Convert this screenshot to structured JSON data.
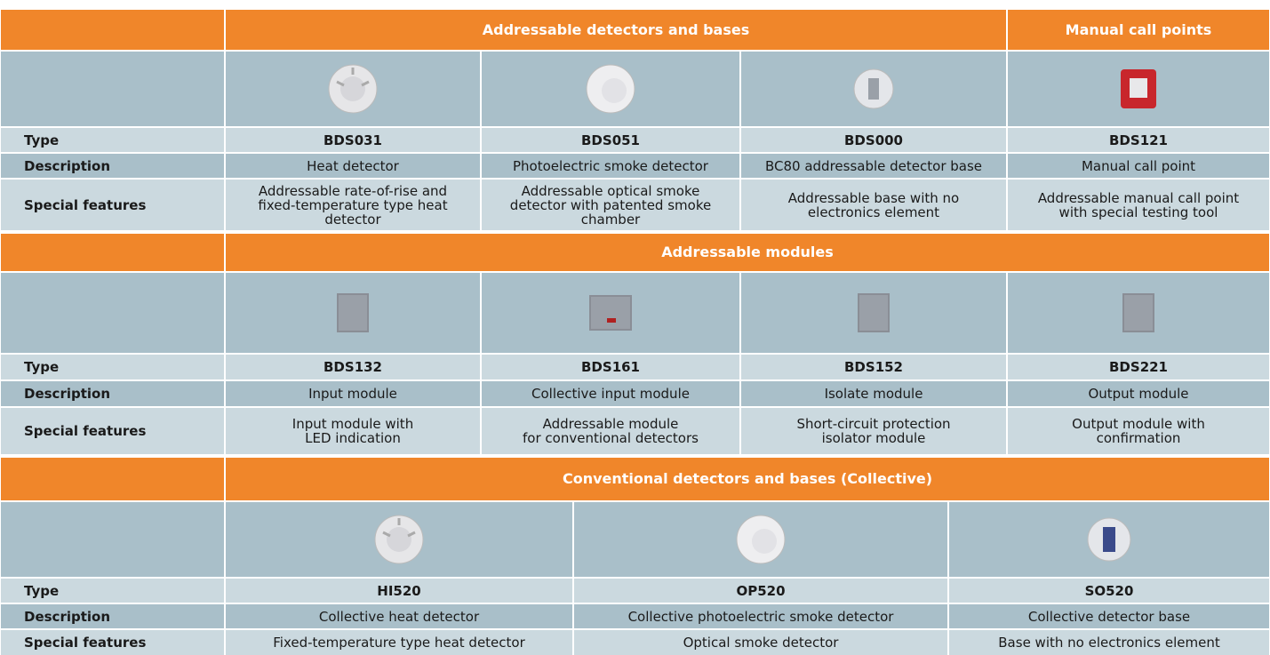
{
  "sections": [
    {
      "headers": [
        "Addressable detectors and bases",
        "Manual call points"
      ],
      "labels": [
        "Type",
        "Description",
        "Special features"
      ],
      "columns": [
        {
          "type": "BDS031",
          "description": "Heat detector",
          "features": "Addressable rate-of-rise and\nfixed-temperature type heat\ndetector"
        },
        {
          "type": "BDS051",
          "description": "Photoelectric smoke detector",
          "features": "Addressable optical smoke\ndetector with patented smoke\nchamber"
        },
        {
          "type": "BDS000",
          "description": "BC80 addressable detector base",
          "features": "Addressable base with no\nelectronics element"
        },
        {
          "type": "BDS121",
          "description": "Manual call point",
          "features": "Addressable manual call point\nwith special testing tool"
        }
      ]
    },
    {
      "headers": [
        "Addressable modules"
      ],
      "labels": [
        "Type",
        "Description",
        "Special features"
      ],
      "columns": [
        {
          "type": "BDS132",
          "description": "Input module",
          "features": "Input module with\nLED indication"
        },
        {
          "type": "BDS161",
          "description": "Collective input module",
          "features": "Addressable module\nfor conventional detectors"
        },
        {
          "type": "BDS152",
          "description": "Isolate module",
          "features": "Short-circuit protection\nisolator module"
        },
        {
          "type": "BDS221",
          "description": "Output module",
          "features": "Output module with\nconfirmation"
        }
      ]
    },
    {
      "headers": [
        "Conventional detectors and bases (Collective)"
      ],
      "labels": [
        "Type",
        "Description",
        "Special features"
      ],
      "columns": [
        {
          "type": "HI520",
          "description": "Collective heat detector",
          "features": "Fixed-temperature type heat detector"
        },
        {
          "type": "OP520",
          "description": "Collective photoelectric smoke detector",
          "features": "Optical smoke detector"
        },
        {
          "type": "SO520",
          "description": "Collective detector base",
          "features": "Base with no electronics element"
        }
      ]
    }
  ]
}
